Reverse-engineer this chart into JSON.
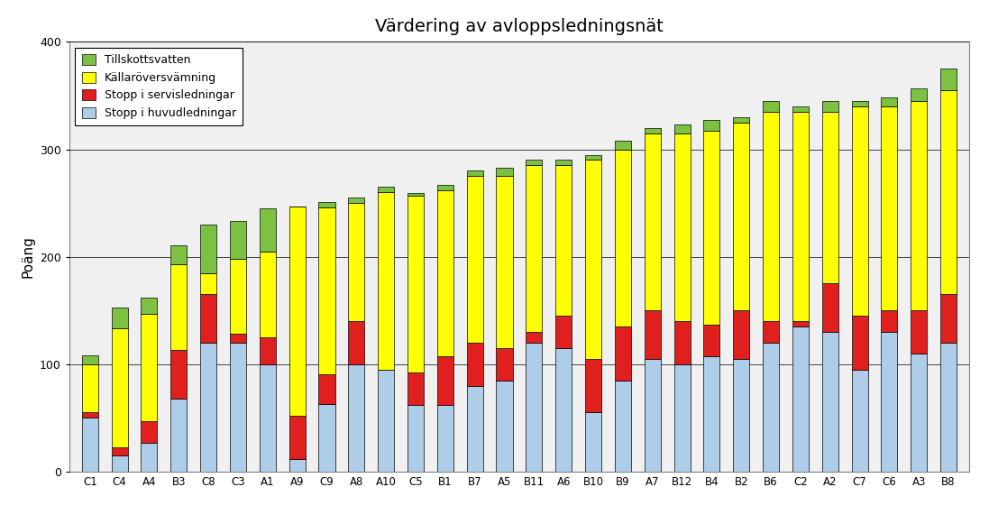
{
  "categories": [
    "C1",
    "C4",
    "A4",
    "B3",
    "C8",
    "C3",
    "A1",
    "A9",
    "C9",
    "A8",
    "A10",
    "C5",
    "B1",
    "B7",
    "A5",
    "B11",
    "A6",
    "B10",
    "B9",
    "A7",
    "B12",
    "B4",
    "B2",
    "B6",
    "C2",
    "A2",
    "C7",
    "C6",
    "A3",
    "B8"
  ],
  "stopp_huvud": [
    50,
    15,
    27,
    68,
    120,
    120,
    100,
    12,
    63,
    100,
    95,
    62,
    62,
    80,
    85,
    120,
    115,
    55,
    85,
    105,
    100,
    107,
    105,
    120,
    135,
    130,
    95,
    130,
    110,
    120
  ],
  "stopp_servis": [
    5,
    8,
    20,
    45,
    45,
    8,
    25,
    40,
    28,
    40,
    0,
    30,
    45,
    40,
    30,
    10,
    30,
    50,
    50,
    45,
    40,
    30,
    45,
    20,
    5,
    45,
    50,
    20,
    40,
    45
  ],
  "kallaro": [
    45,
    110,
    100,
    80,
    20,
    70,
    80,
    195,
    155,
    110,
    165,
    165,
    155,
    155,
    160,
    155,
    140,
    185,
    165,
    165,
    175,
    180,
    175,
    195,
    195,
    160,
    195,
    190,
    195,
    190
  ],
  "tillskott": [
    8,
    20,
    15,
    18,
    45,
    35,
    40,
    0,
    5,
    5,
    5,
    2,
    5,
    5,
    8,
    5,
    5,
    5,
    8,
    5,
    8,
    10,
    5,
    10,
    5,
    10,
    5,
    8,
    12,
    20
  ],
  "colors": {
    "stopp_huvud": "#aecde9",
    "stopp_servis": "#e0201e",
    "kallaro": "#ffff00",
    "tillskott": "#7dc142"
  },
  "title": "Värdering av avloppsledningsnät",
  "ylabel": "Poäng",
  "ylim": [
    0,
    400
  ],
  "yticks": [
    0,
    100,
    200,
    300,
    400
  ],
  "legend_labels": [
    "Tillskottsvatten",
    "Källaröversvämning",
    "Stopp i servisledningar",
    "Stopp i huvudledningar"
  ],
  "plot_bg": "#f0f0f0",
  "fig_bg": "#ffffff",
  "bar_width": 0.55,
  "grid_color": "#000000",
  "spine_color": "#808080"
}
